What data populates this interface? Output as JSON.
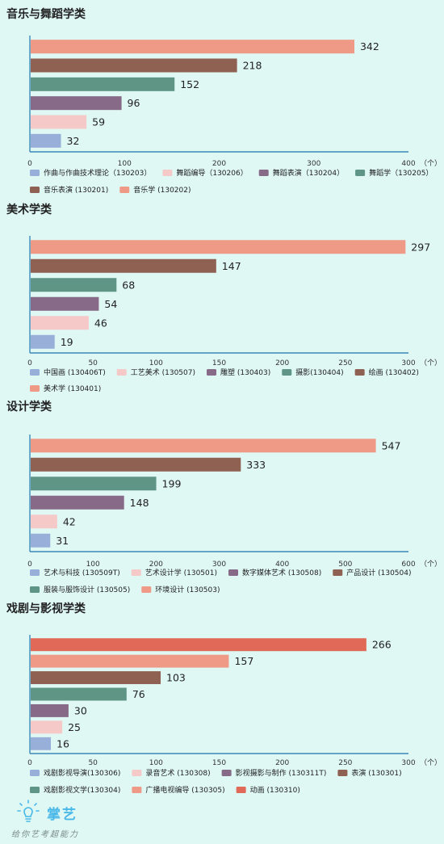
{
  "colors": {
    "background": "#dff8f4",
    "axis": "#3a88b8",
    "text": "#222222",
    "tick": "#333333"
  },
  "chart_data": [
    {
      "type": "bar",
      "orientation": "horizontal",
      "title": "音乐与舞蹈学类",
      "unit": "（个）",
      "xlim": [
        0,
        400
      ],
      "xticks": [
        0,
        100,
        200,
        300,
        400
      ],
      "series": [
        {
          "name": "作曲与作曲技术理论（130203）",
          "value": 32,
          "color": "#98afd9"
        },
        {
          "name": "舞蹈编导（130206）",
          "value": 59,
          "color": "#f6c9c9"
        },
        {
          "name": "舞蹈表演（130204）",
          "value": 96,
          "color": "#866a87"
        },
        {
          "name": "舞蹈学（130205）",
          "value": 152,
          "color": "#5e9585"
        },
        {
          "name": "音乐表演 (130201)",
          "value": 218,
          "color": "#8f6152"
        },
        {
          "name": "音乐学 (130202)",
          "value": 342,
          "color": "#ee9a87"
        }
      ]
    },
    {
      "type": "bar",
      "orientation": "horizontal",
      "title": "美术学类",
      "unit": "（个）",
      "xlim": [
        0,
        300
      ],
      "xticks": [
        0,
        50,
        100,
        150,
        200,
        250,
        300
      ],
      "series": [
        {
          "name": "中国画 (130406T)",
          "value": 19,
          "color": "#98afd9"
        },
        {
          "name": "工艺美术 (130507)",
          "value": 46,
          "color": "#f6c9c9"
        },
        {
          "name": "雕塑 (130403)",
          "value": 54,
          "color": "#866a87"
        },
        {
          "name": "摄影(130404)",
          "value": 68,
          "color": "#5e9585"
        },
        {
          "name": "绘画 (130402)",
          "value": 147,
          "color": "#8f6152"
        },
        {
          "name": "美术学 (130401)",
          "value": 297,
          "color": "#ee9a87"
        }
      ]
    },
    {
      "type": "bar",
      "orientation": "horizontal",
      "title": "设计学类",
      "unit": "（个）",
      "xlim": [
        0,
        600
      ],
      "xticks": [
        0,
        100,
        200,
        300,
        400,
        500,
        600
      ],
      "series": [
        {
          "name": "艺术与科技 (130509T)",
          "value": 31,
          "color": "#98afd9"
        },
        {
          "name": "艺术设计学 (130501)",
          "value": 42,
          "color": "#f6c9c9"
        },
        {
          "name": "数字媒体艺术 (130508)",
          "value": 148,
          "color": "#866a87"
        },
        {
          "name": "服装与服饰设计 (130505)",
          "value": 199,
          "color": "#5e9585"
        },
        {
          "name": "产品设计 (130504)",
          "value": 333,
          "color": "#8f6152"
        },
        {
          "name": "环境设计 (130503)",
          "value": 547,
          "color": "#ee9a87"
        }
      ],
      "legend_order": [
        0,
        1,
        2,
        4,
        3,
        5
      ]
    },
    {
      "type": "bar",
      "orientation": "horizontal",
      "title": "戏剧与影视学类",
      "unit": "（个）",
      "xlim": [
        0,
        300
      ],
      "xticks": [
        0,
        50,
        100,
        150,
        200,
        250,
        300
      ],
      "series": [
        {
          "name": "戏剧影视导演(130306)",
          "value": 16,
          "color": "#98afd9"
        },
        {
          "name": "录音艺术 (130308)",
          "value": 25,
          "color": "#f6c9c9"
        },
        {
          "name": "影视摄影与制作 (130311T)",
          "value": 30,
          "color": "#866a87"
        },
        {
          "name": "戏剧影视文学(130304)",
          "value": 76,
          "color": "#5e9585"
        },
        {
          "name": "表演 (130301)",
          "value": 103,
          "color": "#8f6152"
        },
        {
          "name": "广播电视编导 (130305)",
          "value": 157,
          "color": "#ee9a87"
        },
        {
          "name": "动画 (130310)",
          "value": 266,
          "color": "#e06a57"
        }
      ],
      "legend_order": [
        0,
        1,
        2,
        4,
        3,
        5,
        6
      ]
    }
  ],
  "brand": {
    "name": "掌艺",
    "slogan": "给你艺考超能力",
    "icon": "lightbulb-icon"
  }
}
